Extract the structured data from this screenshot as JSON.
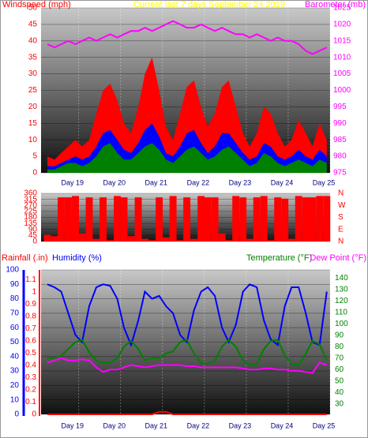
{
  "chart_data": [
    {
      "type": "area",
      "title": "Current last 7 days September 24 2019",
      "ylabel": "Windspeed (mph)",
      "y2label": "Barometer (mb)",
      "x": [
        18.25,
        18.42,
        18.58,
        18.75,
        18.92,
        19.08,
        19.25,
        19.42,
        19.58,
        19.75,
        19.92,
        20.08,
        20.25,
        20.42,
        20.58,
        20.75,
        20.92,
        21.08,
        21.25,
        21.42,
        21.58,
        21.75,
        21.92,
        22.08,
        22.25,
        22.42,
        22.58,
        22.75,
        22.92,
        23.08,
        23.25,
        23.42,
        23.58,
        23.75,
        23.92,
        24.08,
        24.25,
        24.42,
        24.58,
        24.75,
        24.92
      ],
      "xlim": [
        18.1,
        25.0
      ],
      "xticks": [
        {
          "value": 19,
          "label": "Day 19"
        },
        {
          "value": 20,
          "label": "Day 20"
        },
        {
          "value": 21,
          "label": "Day 21"
        },
        {
          "value": 22,
          "label": "Day 22"
        },
        {
          "value": 23,
          "label": "Day 23"
        },
        {
          "value": 24,
          "label": "Day 24"
        },
        {
          "value": 25,
          "label": "Day 25"
        }
      ],
      "ylim": [
        0,
        50
      ],
      "yticks": [
        0,
        5,
        10,
        15,
        20,
        25,
        30,
        35,
        40,
        45,
        50
      ],
      "y2lim": [
        975,
        1025
      ],
      "y2ticks": [
        975,
        980,
        985,
        990,
        995,
        1000,
        1005,
        1010,
        1015,
        1020,
        1025
      ],
      "grid": true,
      "series": [
        {
          "color": "#ff0000",
          "style": "area",
          "values": [
            5,
            4,
            6,
            8,
            10,
            8,
            10,
            18,
            25,
            27,
            22,
            15,
            12,
            20,
            30,
            35,
            25,
            14,
            10,
            18,
            26,
            28,
            20,
            14,
            18,
            26,
            28,
            20,
            12,
            8,
            12,
            20,
            18,
            12,
            8,
            10,
            16,
            12,
            8,
            15,
            10
          ]
        },
        {
          "color": "#0000ff",
          "style": "area",
          "values": [
            2,
            2,
            3,
            4,
            5,
            4,
            5,
            8,
            12,
            13,
            10,
            7,
            6,
            9,
            13,
            15,
            11,
            6,
            5,
            8,
            12,
            13,
            9,
            6,
            8,
            12,
            12,
            9,
            6,
            4,
            5,
            9,
            8,
            5,
            4,
            5,
            7,
            5,
            4,
            7,
            5
          ]
        },
        {
          "color": "#008000",
          "style": "area",
          "values": [
            1,
            1,
            2,
            3,
            3,
            2,
            3,
            5,
            8,
            9,
            6,
            4,
            4,
            6,
            8,
            9,
            7,
            4,
            3,
            5,
            7,
            8,
            6,
            4,
            5,
            7,
            8,
            6,
            4,
            2,
            3,
            6,
            5,
            3,
            2,
            3,
            4,
            3,
            2,
            4,
            3
          ]
        },
        {
          "color": "#ff00ff",
          "style": "line",
          "axis": "y2",
          "values": [
            1014,
            1013,
            1014,
            1015,
            1014,
            1015,
            1016,
            1015,
            1016,
            1017,
            1016,
            1017,
            1018,
            1018,
            1019,
            1018,
            1019,
            1020,
            1021,
            1020,
            1019,
            1019,
            1020,
            1019,
            1018,
            1019,
            1018,
            1017,
            1017,
            1016,
            1017,
            1016,
            1015,
            1016,
            1015,
            1015,
            1014,
            1012,
            1011,
            1012,
            1013
          ]
        }
      ]
    },
    {
      "type": "bar",
      "x": [
        18.25,
        18.42,
        18.58,
        18.75,
        18.92,
        19.08,
        19.25,
        19.42,
        19.58,
        19.75,
        19.92,
        20.08,
        20.25,
        20.42,
        20.58,
        20.75,
        20.92,
        21.08,
        21.25,
        21.42,
        21.58,
        21.75,
        21.92,
        22.08,
        22.25,
        22.42,
        22.58,
        22.75,
        22.92,
        23.08,
        23.25,
        23.42,
        23.58,
        23.75,
        23.92,
        24.08,
        24.25,
        24.42,
        24.58,
        24.75,
        24.92
      ],
      "xlim": [
        18.1,
        25.0
      ],
      "ylim": [
        0,
        360
      ],
      "yticks": [
        0,
        45,
        90,
        135,
        180,
        225,
        270,
        315,
        360
      ],
      "y2lim": [
        0,
        360
      ],
      "y2ticks": [
        {
          "value": 0,
          "label": "N"
        },
        {
          "value": 90,
          "label": "E"
        },
        {
          "value": 180,
          "label": "S"
        },
        {
          "value": 270,
          "label": "W"
        },
        {
          "value": 360,
          "label": "N"
        }
      ],
      "grid": true,
      "series": [
        {
          "color": "#ff0000",
          "style": "bar",
          "values": [
            50,
            40,
            330,
            330,
            340,
            60,
            330,
            20,
            330,
            10,
            340,
            330,
            40,
            330,
            20,
            10,
            330,
            30,
            340,
            10,
            330,
            20,
            340,
            330,
            330,
            60,
            10,
            340,
            330,
            20,
            330,
            340,
            10,
            330,
            320,
            20,
            340,
            330,
            330,
            340,
            340
          ]
        }
      ]
    },
    {
      "type": "line",
      "ylabel": "Humidity (%)",
      "y2label": "Rainfall (.in)",
      "y3label": "Temperature (°F)",
      "y4label": "Dew Point (°F)",
      "x": [
        18.25,
        18.42,
        18.58,
        18.75,
        18.92,
        19.08,
        19.25,
        19.42,
        19.58,
        19.75,
        19.92,
        20.08,
        20.25,
        20.42,
        20.58,
        20.75,
        20.92,
        21.08,
        21.25,
        21.42,
        21.58,
        21.75,
        21.92,
        22.08,
        22.25,
        22.42,
        22.58,
        22.75,
        22.92,
        23.08,
        23.25,
        23.42,
        23.58,
        23.75,
        23.92,
        24.08,
        24.25,
        24.42,
        24.58,
        24.75,
        24.92
      ],
      "xlim": [
        18.1,
        25.0
      ],
      "xticks": [
        {
          "value": 19,
          "label": "Day 19"
        },
        {
          "value": 20,
          "label": "Day 20"
        },
        {
          "value": 21,
          "label": "Day 21"
        },
        {
          "value": 22,
          "label": "Day 22"
        },
        {
          "value": 23,
          "label": "Day 23"
        },
        {
          "value": 24,
          "label": "Day 24"
        },
        {
          "value": 25,
          "label": "Day 25"
        }
      ],
      "ylim": [
        0,
        100
      ],
      "yticks": [
        0,
        10,
        20,
        30,
        40,
        50,
        60,
        70,
        80,
        90,
        100
      ],
      "y2lim": [
        0,
        1.18
      ],
      "y2ticks": [
        0,
        0.1,
        0.2,
        0.3,
        0.4,
        0.5,
        0.6,
        0.7,
        0.8,
        0.9,
        1,
        1.1
      ],
      "y3lim": [
        21,
        147
      ],
      "y3ticks": [
        30,
        40,
        50,
        60,
        70,
        80,
        90,
        100,
        110,
        120,
        130,
        140
      ],
      "grid": true,
      "series": [
        {
          "color": "#0000ff",
          "style": "line",
          "axis": "y",
          "values": [
            90,
            88,
            85,
            70,
            55,
            50,
            75,
            88,
            90,
            89,
            80,
            60,
            48,
            65,
            85,
            80,
            82,
            75,
            70,
            55,
            50,
            72,
            85,
            88,
            82,
            60,
            50,
            62,
            85,
            90,
            88,
            65,
            52,
            48,
            75,
            88,
            88,
            70,
            50,
            48,
            85
          ]
        },
        {
          "color": "#008000",
          "style": "line",
          "axis": "y3",
          "values": [
            70,
            70,
            72,
            78,
            84,
            86,
            75,
            68,
            66,
            66,
            70,
            80,
            85,
            78,
            68,
            70,
            70,
            74,
            76,
            84,
            86,
            74,
            66,
            65,
            68,
            80,
            86,
            80,
            68,
            64,
            65,
            78,
            85,
            86,
            72,
            65,
            64,
            74,
            85,
            82,
            68
          ]
        },
        {
          "color": "#ff00ff",
          "style": "line",
          "axis": "y3",
          "values": [
            66,
            68,
            70,
            68,
            68,
            69,
            68,
            62,
            58,
            60,
            60,
            62,
            64,
            63,
            62,
            63,
            64,
            64,
            64,
            64,
            63,
            63,
            62,
            62,
            62,
            62,
            62,
            62,
            61,
            60,
            60,
            61,
            61,
            60,
            60,
            59,
            59,
            58,
            57,
            66,
            64
          ]
        },
        {
          "color": "#ff0000",
          "style": "line",
          "axis": "y2",
          "values": [
            0,
            0,
            0,
            0,
            0,
            0,
            0,
            0,
            0,
            0,
            0,
            0,
            0,
            0,
            0,
            0,
            0.02,
            0.02,
            0,
            0,
            0,
            0,
            0,
            0,
            0,
            0,
            0,
            0,
            0,
            0,
            0,
            0,
            0,
            0,
            0,
            0,
            0,
            0,
            0,
            0,
            0
          ]
        }
      ]
    }
  ]
}
